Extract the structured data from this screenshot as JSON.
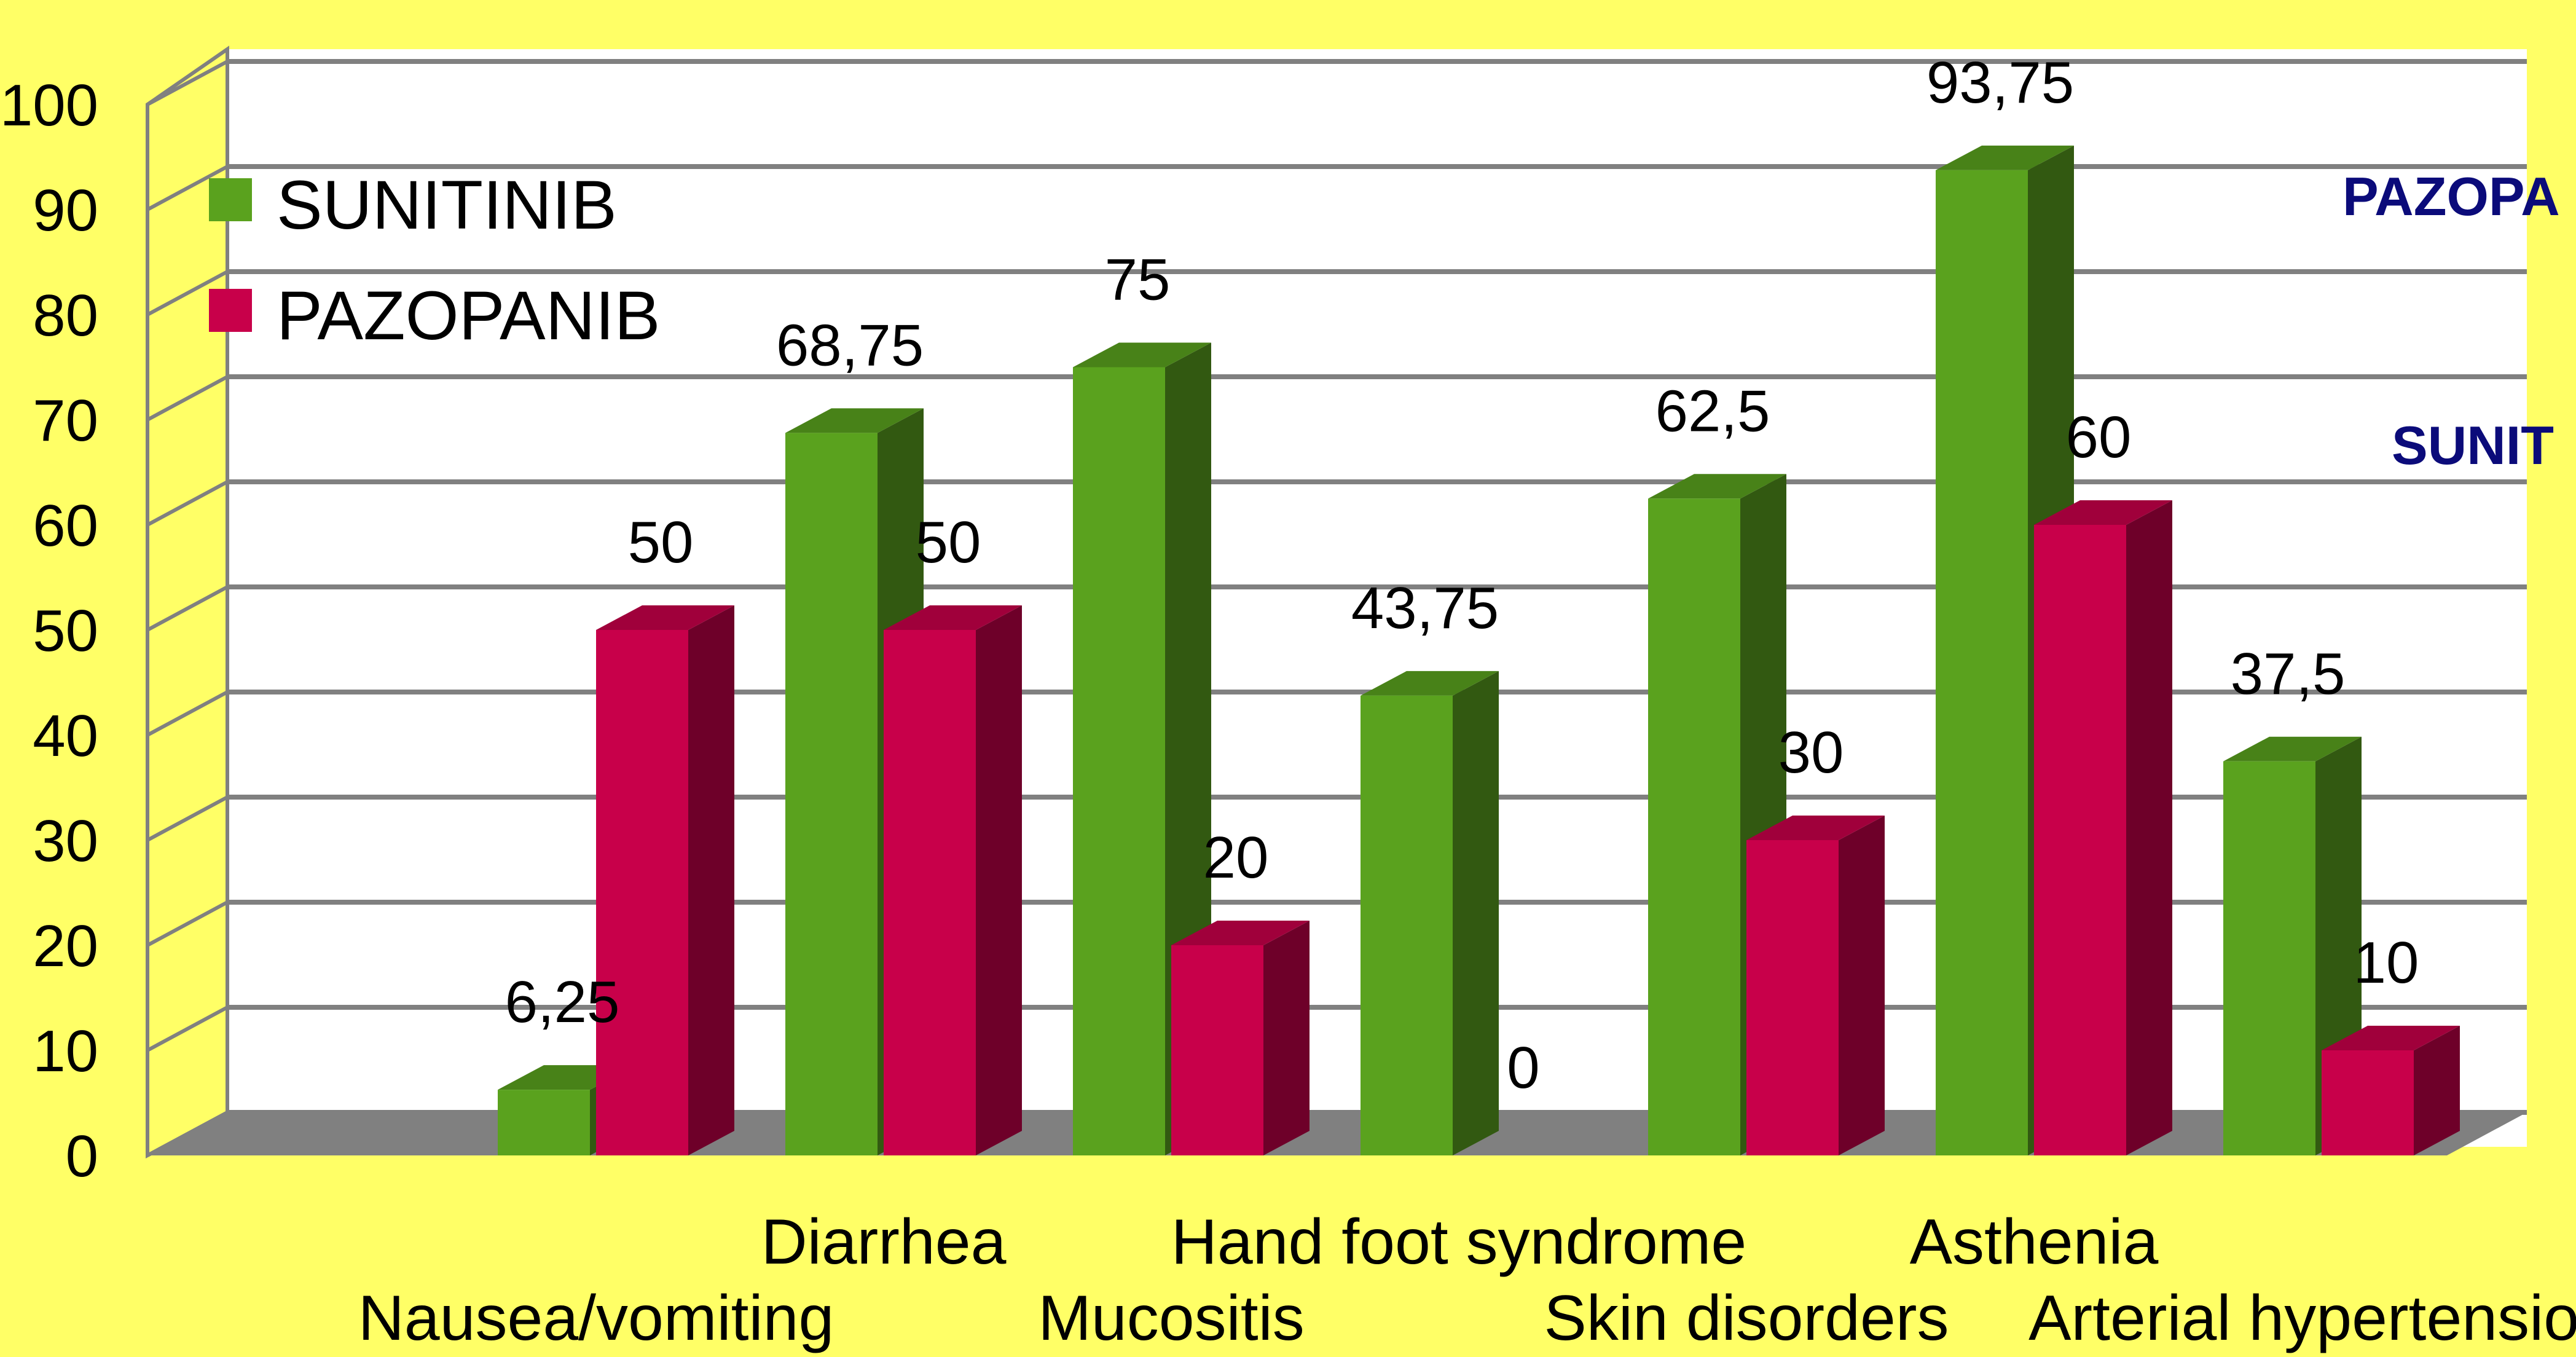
{
  "chart_data": {
    "type": "bar",
    "categories": [
      "Nausea/vomiting",
      "Diarrhea",
      "Mucositis",
      "Hand foot syndrome",
      "Skin disorders",
      "Asthenia",
      "Arterial hypertension"
    ],
    "series": [
      {
        "name": "SUNITINIB",
        "color": "#5aa21e",
        "values": [
          6.25,
          68.75,
          75,
          43.75,
          62.5,
          93.75,
          37.5
        ],
        "labels": [
          "6,25",
          "68,75",
          "75",
          "43,75",
          "62,5",
          "93,75",
          "37,5"
        ]
      },
      {
        "name": "PAZOPANIB",
        "color": "#c8004a",
        "values": [
          50,
          50,
          20,
          0,
          30,
          60,
          10
        ],
        "labels": [
          "50",
          "50",
          "20",
          "0",
          "30",
          "60",
          "10"
        ]
      }
    ],
    "yticks": [
      "0",
      "10",
      "20",
      "30",
      "40",
      "50",
      "60",
      "70",
      "80",
      "90",
      "100"
    ],
    "ylim": [
      0,
      100
    ],
    "grid": true,
    "legend_position": "top-left",
    "side_labels": [
      "PAZOPA",
      "SUNIT"
    ]
  }
}
